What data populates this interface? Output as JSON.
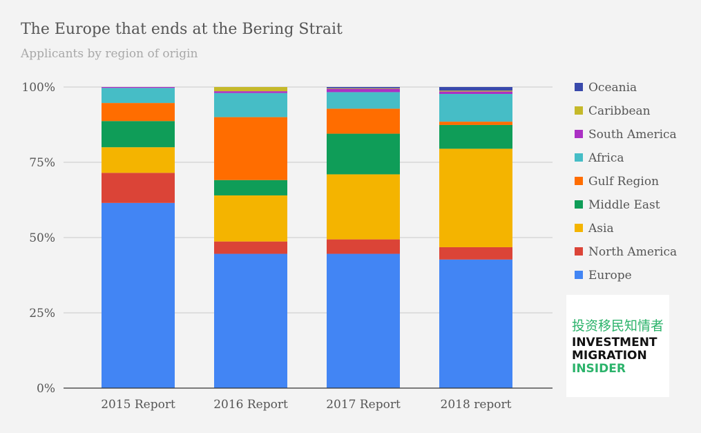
{
  "title": "The Europe that ends at the Bering Strait",
  "subtitle": "Applicants by region of origin",
  "chart_data": {
    "type": "bar",
    "stacked": true,
    "normalized": true,
    "categories": [
      "2015 Report",
      "2016 Report",
      "2017 Report",
      "2018 report"
    ],
    "y_ticks": [
      "100%",
      "75%",
      "50%",
      "25%",
      "0%"
    ],
    "ylim": [
      0,
      100
    ],
    "grid": true,
    "legend_position": "right",
    "series": [
      {
        "name": "Europe",
        "color": "#4285f4",
        "values": [
          61.5,
          44.6,
          44.6,
          42.7
        ]
      },
      {
        "name": "North America",
        "color": "#db4437",
        "values": [
          10.0,
          4.1,
          4.8,
          4.1
        ]
      },
      {
        "name": "Asia",
        "color": "#f4b400",
        "values": [
          8.5,
          15.3,
          21.6,
          32.7
        ]
      },
      {
        "name": "Middle East",
        "color": "#0f9d58",
        "values": [
          8.7,
          5.1,
          13.5,
          7.9
        ]
      },
      {
        "name": "Gulf Region",
        "color": "#ff6d00",
        "values": [
          6.0,
          20.9,
          8.3,
          1.1
        ]
      },
      {
        "name": "Africa",
        "color": "#46bdc6",
        "values": [
          5.0,
          8.0,
          5.5,
          9.2
        ]
      },
      {
        "name": "South America",
        "color": "#ab30c4",
        "values": [
          0.3,
          0.6,
          1.1,
          0.8
        ]
      },
      {
        "name": "Caribbean",
        "color": "#c5b92a",
        "values": [
          0.0,
          1.4,
          0.2,
          0.3
        ]
      },
      {
        "name": "Oceania",
        "color": "#3949ab",
        "values": [
          0.0,
          0.0,
          0.4,
          1.2
        ]
      }
    ]
  },
  "legend": {
    "order": [
      "Oceania",
      "Caribbean",
      "South America",
      "Africa",
      "Gulf Region",
      "Middle East",
      "Asia",
      "North America",
      "Europe"
    ]
  },
  "logo": {
    "chinese": "投资移民知情者",
    "line1": "INVESTMENT",
    "line2": "MIGRATION",
    "line3": "INSIDER"
  }
}
